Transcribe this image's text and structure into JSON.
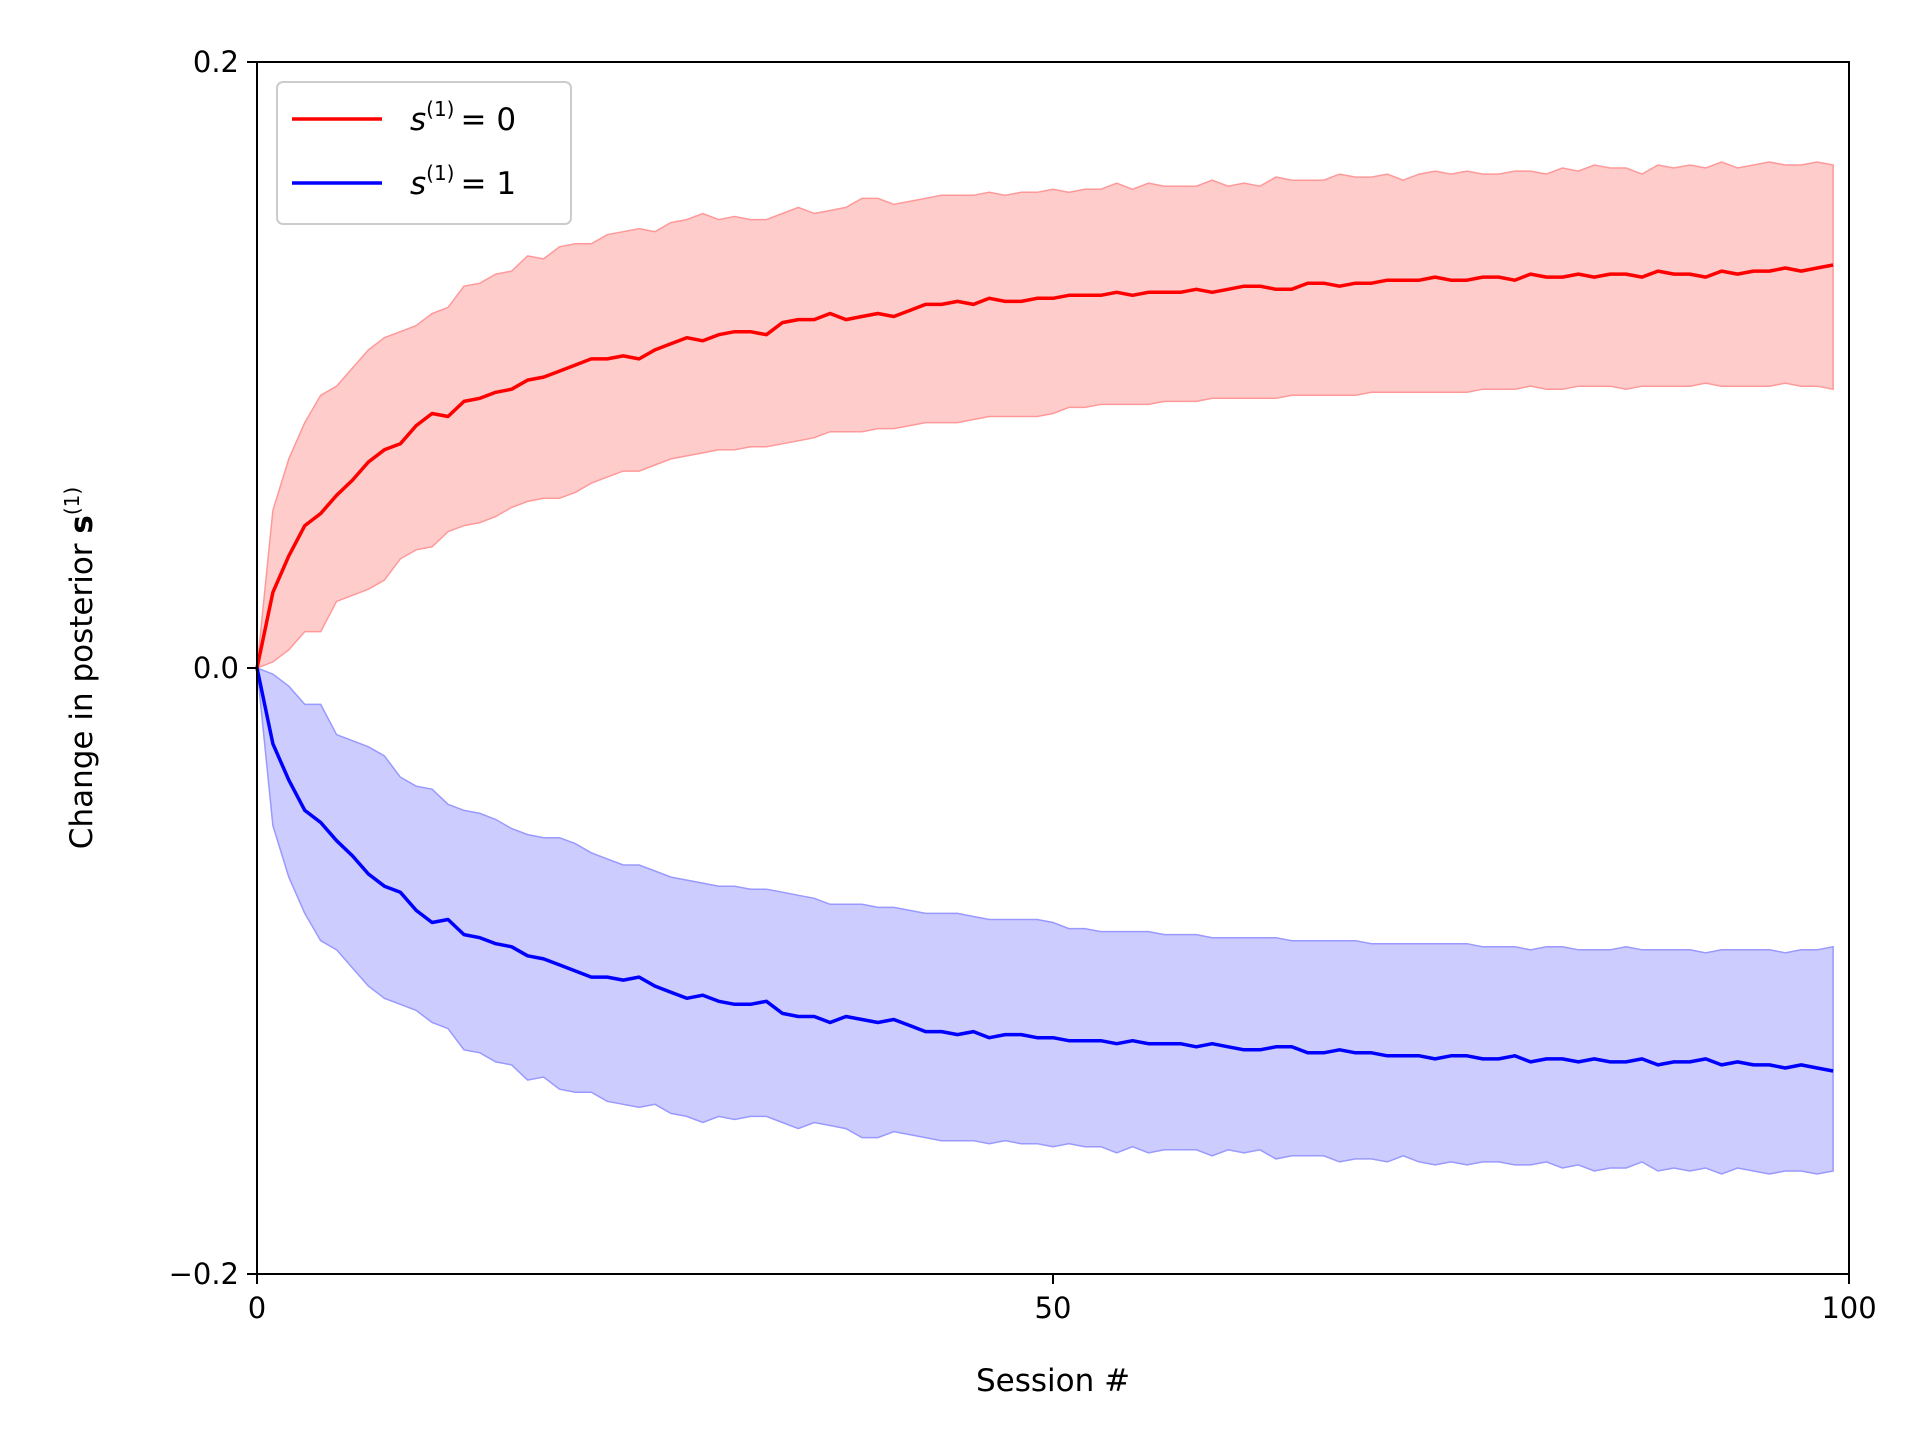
{
  "chart_data": {
    "type": "line",
    "title": "",
    "xlabel": "Session #",
    "ylabel": "Change in posterior",
    "ylabel_symbol": "s",
    "ylabel_superscript": "(1)",
    "xlim": [
      0,
      100
    ],
    "ylim": [
      -0.2,
      0.2
    ],
    "xticks": [
      0,
      50,
      100
    ],
    "xtick_labels": [
      "0",
      "50",
      "100"
    ],
    "yticks": [
      -0.2,
      0.0,
      0.2
    ],
    "ytick_labels": [
      "−0.2",
      "0.0",
      "0.2"
    ],
    "grid": false,
    "legend_position": "top-left",
    "x": [
      0,
      1,
      2,
      3,
      4,
      5,
      6,
      7,
      8,
      9,
      10,
      11,
      12,
      13,
      14,
      15,
      16,
      17,
      18,
      19,
      20,
      21,
      22,
      23,
      24,
      25,
      26,
      27,
      28,
      29,
      30,
      31,
      32,
      33,
      34,
      35,
      36,
      37,
      38,
      39,
      40,
      41,
      42,
      43,
      44,
      45,
      46,
      47,
      48,
      49,
      50,
      51,
      52,
      53,
      54,
      55,
      56,
      57,
      58,
      59,
      60,
      61,
      62,
      63,
      64,
      65,
      66,
      67,
      68,
      69,
      70,
      71,
      72,
      73,
      74,
      75,
      76,
      77,
      78,
      79,
      80,
      81,
      82,
      83,
      84,
      85,
      86,
      87,
      88,
      89,
      90,
      91,
      92,
      93,
      94,
      95,
      96,
      97,
      98,
      99
    ],
    "series": [
      {
        "legend_symbol": "s",
        "legend_superscript": "(1)",
        "legend_value": "= 0",
        "color": "#ff0000",
        "band_color": "#ff9999",
        "mean": [
          0.0,
          0.025,
          0.037,
          0.047,
          0.051,
          0.057,
          0.062,
          0.068,
          0.072,
          0.074,
          0.08,
          0.084,
          0.083,
          0.088,
          0.089,
          0.091,
          0.092,
          0.095,
          0.096,
          0.098,
          0.1,
          0.102,
          0.102,
          0.103,
          0.102,
          0.105,
          0.107,
          0.109,
          0.108,
          0.11,
          0.111,
          0.111,
          0.11,
          0.114,
          0.115,
          0.115,
          0.117,
          0.115,
          0.116,
          0.117,
          0.116,
          0.118,
          0.12,
          0.12,
          0.121,
          0.12,
          0.122,
          0.121,
          0.121,
          0.122,
          0.122,
          0.123,
          0.123,
          0.123,
          0.124,
          0.123,
          0.124,
          0.124,
          0.124,
          0.125,
          0.124,
          0.125,
          0.126,
          0.126,
          0.125,
          0.125,
          0.127,
          0.127,
          0.126,
          0.127,
          0.127,
          0.128,
          0.128,
          0.128,
          0.129,
          0.128,
          0.128,
          0.129,
          0.129,
          0.128,
          0.13,
          0.129,
          0.129,
          0.13,
          0.129,
          0.13,
          0.13,
          0.129,
          0.131,
          0.13,
          0.13,
          0.129,
          0.131,
          0.13,
          0.131,
          0.131,
          0.132,
          0.131,
          0.132,
          0.133
        ],
        "upper": [
          0.0,
          0.052,
          0.069,
          0.081,
          0.09,
          0.093,
          0.099,
          0.105,
          0.109,
          0.111,
          0.113,
          0.117,
          0.119,
          0.126,
          0.127,
          0.13,
          0.131,
          0.136,
          0.135,
          0.139,
          0.14,
          0.14,
          0.143,
          0.144,
          0.145,
          0.144,
          0.147,
          0.148,
          0.15,
          0.148,
          0.149,
          0.148,
          0.148,
          0.15,
          0.152,
          0.15,
          0.151,
          0.152,
          0.155,
          0.155,
          0.153,
          0.154,
          0.155,
          0.156,
          0.156,
          0.156,
          0.157,
          0.156,
          0.157,
          0.157,
          0.158,
          0.157,
          0.158,
          0.158,
          0.16,
          0.158,
          0.16,
          0.159,
          0.159,
          0.159,
          0.161,
          0.159,
          0.16,
          0.159,
          0.162,
          0.161,
          0.161,
          0.161,
          0.163,
          0.162,
          0.162,
          0.163,
          0.161,
          0.163,
          0.164,
          0.163,
          0.164,
          0.163,
          0.163,
          0.164,
          0.164,
          0.163,
          0.165,
          0.164,
          0.166,
          0.165,
          0.165,
          0.163,
          0.166,
          0.165,
          0.166,
          0.165,
          0.167,
          0.165,
          0.166,
          0.167,
          0.166,
          0.166,
          0.167,
          0.166
        ],
        "lower": [
          0.0,
          0.002,
          0.006,
          0.012,
          0.012,
          0.022,
          0.024,
          0.026,
          0.029,
          0.036,
          0.039,
          0.04,
          0.045,
          0.047,
          0.048,
          0.05,
          0.053,
          0.055,
          0.056,
          0.056,
          0.058,
          0.061,
          0.063,
          0.065,
          0.065,
          0.067,
          0.069,
          0.07,
          0.071,
          0.072,
          0.072,
          0.073,
          0.073,
          0.074,
          0.075,
          0.076,
          0.078,
          0.078,
          0.078,
          0.079,
          0.079,
          0.08,
          0.081,
          0.081,
          0.081,
          0.082,
          0.083,
          0.083,
          0.083,
          0.083,
          0.084,
          0.086,
          0.086,
          0.087,
          0.087,
          0.087,
          0.087,
          0.088,
          0.088,
          0.088,
          0.089,
          0.089,
          0.089,
          0.089,
          0.089,
          0.09,
          0.09,
          0.09,
          0.09,
          0.09,
          0.091,
          0.091,
          0.091,
          0.091,
          0.091,
          0.091,
          0.091,
          0.092,
          0.092,
          0.092,
          0.093,
          0.092,
          0.092,
          0.093,
          0.093,
          0.093,
          0.092,
          0.093,
          0.093,
          0.093,
          0.093,
          0.094,
          0.093,
          0.093,
          0.093,
          0.093,
          0.094,
          0.093,
          0.093,
          0.092
        ]
      },
      {
        "legend_symbol": "s",
        "legend_superscript": "(1)",
        "legend_value": "= 1",
        "color": "#0000ff",
        "band_color": "#9999ff",
        "mean": [
          0.0,
          -0.025,
          -0.037,
          -0.047,
          -0.051,
          -0.057,
          -0.062,
          -0.068,
          -0.072,
          -0.074,
          -0.08,
          -0.084,
          -0.083,
          -0.088,
          -0.089,
          -0.091,
          -0.092,
          -0.095,
          -0.096,
          -0.098,
          -0.1,
          -0.102,
          -0.102,
          -0.103,
          -0.102,
          -0.105,
          -0.107,
          -0.109,
          -0.108,
          -0.11,
          -0.111,
          -0.111,
          -0.11,
          -0.114,
          -0.115,
          -0.115,
          -0.117,
          -0.115,
          -0.116,
          -0.117,
          -0.116,
          -0.118,
          -0.12,
          -0.12,
          -0.121,
          -0.12,
          -0.122,
          -0.121,
          -0.121,
          -0.122,
          -0.122,
          -0.123,
          -0.123,
          -0.123,
          -0.124,
          -0.123,
          -0.124,
          -0.124,
          -0.124,
          -0.125,
          -0.124,
          -0.125,
          -0.126,
          -0.126,
          -0.125,
          -0.125,
          -0.127,
          -0.127,
          -0.126,
          -0.127,
          -0.127,
          -0.128,
          -0.128,
          -0.128,
          -0.129,
          -0.128,
          -0.128,
          -0.129,
          -0.129,
          -0.128,
          -0.13,
          -0.129,
          -0.129,
          -0.13,
          -0.129,
          -0.13,
          -0.13,
          -0.129,
          -0.131,
          -0.13,
          -0.13,
          -0.129,
          -0.131,
          -0.13,
          -0.131,
          -0.131,
          -0.132,
          -0.131,
          -0.132,
          -0.133
        ],
        "upper": [
          0.0,
          -0.002,
          -0.006,
          -0.012,
          -0.012,
          -0.022,
          -0.024,
          -0.026,
          -0.029,
          -0.036,
          -0.039,
          -0.04,
          -0.045,
          -0.047,
          -0.048,
          -0.05,
          -0.053,
          -0.055,
          -0.056,
          -0.056,
          -0.058,
          -0.061,
          -0.063,
          -0.065,
          -0.065,
          -0.067,
          -0.069,
          -0.07,
          -0.071,
          -0.072,
          -0.072,
          -0.073,
          -0.073,
          -0.074,
          -0.075,
          -0.076,
          -0.078,
          -0.078,
          -0.078,
          -0.079,
          -0.079,
          -0.08,
          -0.081,
          -0.081,
          -0.081,
          -0.082,
          -0.083,
          -0.083,
          -0.083,
          -0.083,
          -0.084,
          -0.086,
          -0.086,
          -0.087,
          -0.087,
          -0.087,
          -0.087,
          -0.088,
          -0.088,
          -0.088,
          -0.089,
          -0.089,
          -0.089,
          -0.089,
          -0.089,
          -0.09,
          -0.09,
          -0.09,
          -0.09,
          -0.09,
          -0.091,
          -0.091,
          -0.091,
          -0.091,
          -0.091,
          -0.091,
          -0.091,
          -0.092,
          -0.092,
          -0.092,
          -0.093,
          -0.092,
          -0.092,
          -0.093,
          -0.093,
          -0.093,
          -0.092,
          -0.093,
          -0.093,
          -0.093,
          -0.093,
          -0.094,
          -0.093,
          -0.093,
          -0.093,
          -0.093,
          -0.094,
          -0.093,
          -0.093,
          -0.092
        ],
        "lower": [
          0.0,
          -0.052,
          -0.069,
          -0.081,
          -0.09,
          -0.093,
          -0.099,
          -0.105,
          -0.109,
          -0.111,
          -0.113,
          -0.117,
          -0.119,
          -0.126,
          -0.127,
          -0.13,
          -0.131,
          -0.136,
          -0.135,
          -0.139,
          -0.14,
          -0.14,
          -0.143,
          -0.144,
          -0.145,
          -0.144,
          -0.147,
          -0.148,
          -0.15,
          -0.148,
          -0.149,
          -0.148,
          -0.148,
          -0.15,
          -0.152,
          -0.15,
          -0.151,
          -0.152,
          -0.155,
          -0.155,
          -0.153,
          -0.154,
          -0.155,
          -0.156,
          -0.156,
          -0.156,
          -0.157,
          -0.156,
          -0.157,
          -0.157,
          -0.158,
          -0.157,
          -0.158,
          -0.158,
          -0.16,
          -0.158,
          -0.16,
          -0.159,
          -0.159,
          -0.159,
          -0.161,
          -0.159,
          -0.16,
          -0.159,
          -0.162,
          -0.161,
          -0.161,
          -0.161,
          -0.163,
          -0.162,
          -0.162,
          -0.163,
          -0.161,
          -0.163,
          -0.164,
          -0.163,
          -0.164,
          -0.163,
          -0.163,
          -0.164,
          -0.164,
          -0.163,
          -0.165,
          -0.164,
          -0.166,
          -0.165,
          -0.165,
          -0.163,
          -0.166,
          -0.165,
          -0.166,
          -0.165,
          -0.167,
          -0.165,
          -0.166,
          -0.167,
          -0.166,
          -0.166,
          -0.167,
          -0.166
        ]
      }
    ]
  }
}
